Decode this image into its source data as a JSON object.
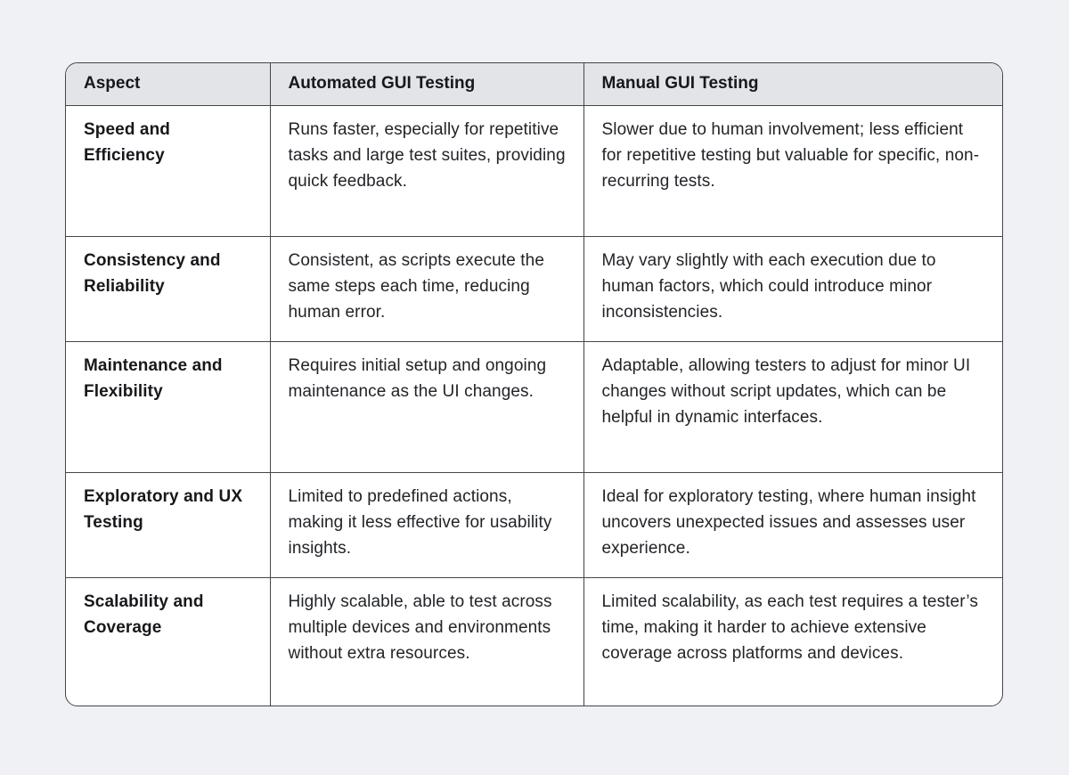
{
  "table": {
    "columns": [
      "Aspect",
      "Automated GUI Testing",
      "Manual GUI Testing"
    ],
    "rows": [
      {
        "aspect": "Speed and Efficiency",
        "automated": "Runs faster, especially for repetitive tasks and large test suites, providing quick feedback.",
        "manual": "Slower due to human involvement; less efficient for repetitive testing but valuable for specific, non-recurring tests."
      },
      {
        "aspect": "Consistency and Reliability",
        "automated": "Consistent, as scripts execute the same steps each time, reducing human error.",
        "manual": "May vary slightly with each execution due to human factors, which could introduce minor inconsistencies."
      },
      {
        "aspect": "Maintenance and Flexibility",
        "automated": "Requires initial setup and ongoing maintenance as the UI changes.",
        "manual": "Adaptable, allowing testers to adjust for minor UI changes without script updates, which can be helpful in dynamic interfaces."
      },
      {
        "aspect": "Exploratory and UX Testing",
        "automated": "Limited to predefined actions, making it less effective for usability insights.",
        "manual": "Ideal for exploratory testing, where human insight uncovers unexpected issues and assesses user experience."
      },
      {
        "aspect": "Scalability and Coverage",
        "automated": "Highly scalable, able to test across multiple devices and environments without extra resources.",
        "manual": "Limited scalability, as each test requires a tester’s time, making it harder to achieve extensive coverage across platforms and devices."
      }
    ]
  },
  "colors": {
    "page_background": "#eff1f4",
    "table_background": "#ffffff",
    "header_background": "#e2e4e7",
    "border": "#43464b",
    "text": "#212428"
  }
}
